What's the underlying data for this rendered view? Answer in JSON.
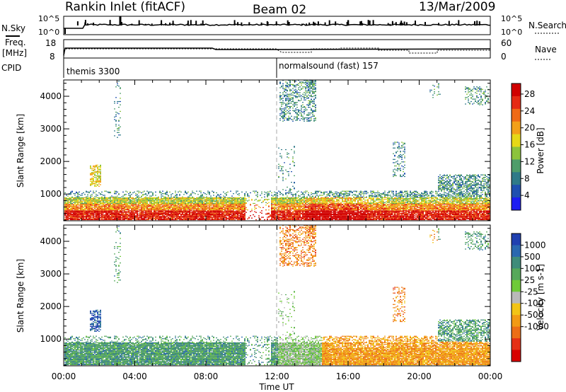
{
  "header": {
    "station": "Rankin Inlet (fitACF)",
    "beam": "Beam 02",
    "date": "13/Mar/2009"
  },
  "labels": {
    "nsky": "N.Sky",
    "nsearch": "N.Search",
    "freq_line1": "Freq.",
    "freq_line2": "[MHz]",
    "nave": "Nave",
    "cpid": "CPID",
    "pow_ticks_top": [
      "10^5",
      "10^0"
    ],
    "freq_ticks": [
      "18",
      "8"
    ],
    "nave_ticks": [
      "60",
      "0"
    ]
  },
  "cpid_segments": [
    {
      "label": "themis 3300",
      "start_hour": 0
    },
    {
      "label": "normalsound (fast) 157",
      "start_hour": 12
    }
  ],
  "chart_data": [
    {
      "type": "heatmap",
      "name": "power",
      "xlabel": "",
      "ylabel": "Slant Range [km]",
      "colorbar_label": "Power [dB]",
      "xlim": [
        0,
        24
      ],
      "ylim": [
        180,
        4500
      ],
      "yticks": [
        "1000",
        "2000",
        "3000",
        "4000"
      ],
      "colorbar_ticks": [
        "4",
        "8",
        "12",
        "16",
        "20",
        "24",
        "28"
      ],
      "colorbar_colors": [
        "#1c1cf2",
        "#1f4fb0",
        "#2f7a88",
        "#4e9d6a",
        "#8cc33c",
        "#e6d817",
        "#f3a019",
        "#ef6a17",
        "#e52a14",
        "#d00000"
      ]
    },
    {
      "type": "heatmap",
      "name": "velocity",
      "xlabel": "Time UT",
      "ylabel": "Slant Range [km]",
      "colorbar_label": "Velocity [m s-1]",
      "xlim": [
        0,
        24
      ],
      "ylim": [
        180,
        4500
      ],
      "xticks": [
        "00:00",
        "04:00",
        "08:00",
        "12:00",
        "16:00",
        "20:00",
        "00:00"
      ],
      "yticks": [
        "1000",
        "2000",
        "3000",
        "4000"
      ],
      "colorbar_ticks": [
        "1000",
        "500",
        "100",
        "25",
        "-25",
        "-100",
        "-500",
        "-1000"
      ],
      "colorbar_colors": [
        "#2040b0",
        "#2a68b0",
        "#3f8c7a",
        "#56a85a",
        "#6fca38",
        "#b9b9b9",
        "#f2c416",
        "#f29a14",
        "#ec6e16",
        "#e43016",
        "#d80000"
      ]
    }
  ]
}
